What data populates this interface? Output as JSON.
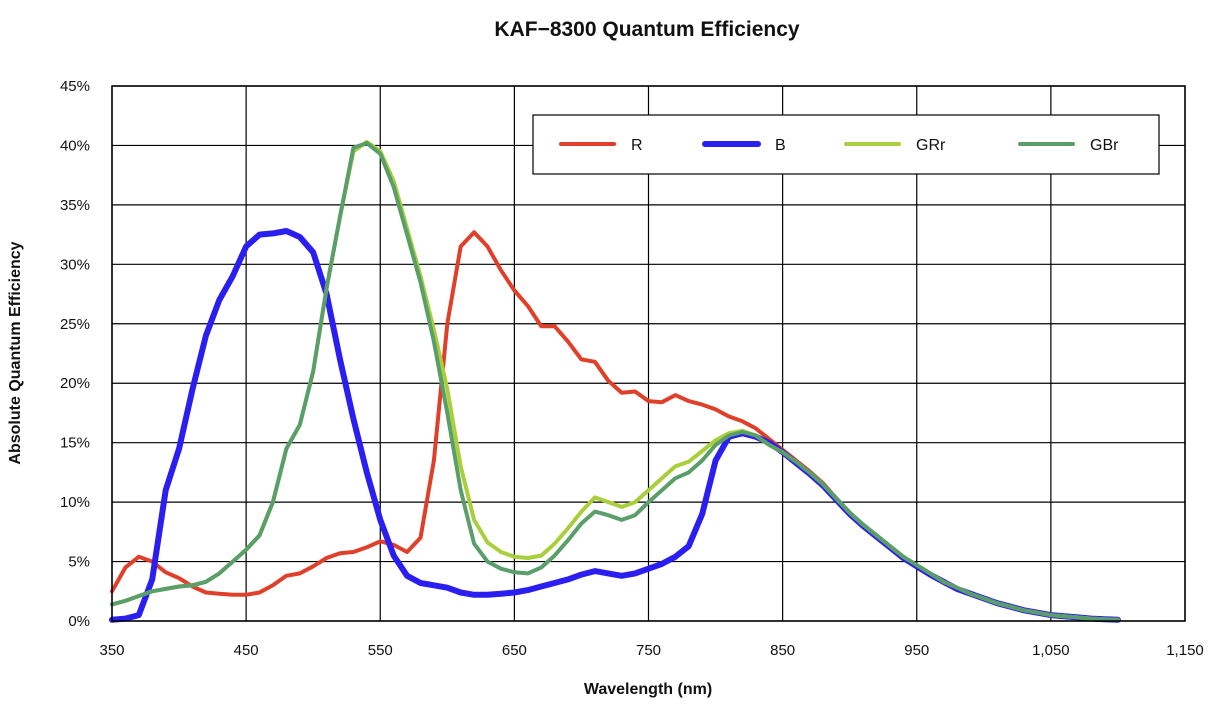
{
  "chart_data": {
    "type": "line",
    "title": "KAF−8300 Quantum Efficiency",
    "xlabel": "Wavelength (nm)",
    "ylabel": "Absolute Quantum Efficiency",
    "xlim": [
      350,
      1150
    ],
    "ylim": [
      0,
      45
    ],
    "x_ticks": [
      350,
      450,
      550,
      650,
      750,
      850,
      950,
      1050,
      1150
    ],
    "x_tick_labels": [
      "350",
      "450",
      "550",
      "650",
      "750",
      "850",
      "950",
      "1,050",
      "1,150"
    ],
    "y_ticks": [
      0,
      5,
      10,
      15,
      20,
      25,
      30,
      35,
      40,
      45
    ],
    "y_tick_labels": [
      "0%",
      "5%",
      "10%",
      "15%",
      "20%",
      "25%",
      "30%",
      "35%",
      "40%",
      "45%"
    ],
    "grid": true,
    "legend_position": "top-right",
    "series": [
      {
        "name": "R",
        "color": "#e0402a",
        "width": 4,
        "points": [
          [
            350,
            2.5
          ],
          [
            360,
            4.5
          ],
          [
            370,
            5.4
          ],
          [
            380,
            5.0
          ],
          [
            390,
            4.1
          ],
          [
            400,
            3.6
          ],
          [
            410,
            2.9
          ],
          [
            420,
            2.4
          ],
          [
            430,
            2.3
          ],
          [
            440,
            2.2
          ],
          [
            450,
            2.2
          ],
          [
            460,
            2.4
          ],
          [
            470,
            3.0
          ],
          [
            480,
            3.8
          ],
          [
            490,
            4.0
          ],
          [
            500,
            4.6
          ],
          [
            510,
            5.3
          ],
          [
            520,
            5.7
          ],
          [
            530,
            5.8
          ],
          [
            540,
            6.2
          ],
          [
            550,
            6.7
          ],
          [
            560,
            6.4
          ],
          [
            570,
            5.8
          ],
          [
            580,
            7.0
          ],
          [
            590,
            13.5
          ],
          [
            600,
            25.0
          ],
          [
            610,
            31.5
          ],
          [
            620,
            32.7
          ],
          [
            630,
            31.5
          ],
          [
            640,
            29.5
          ],
          [
            650,
            27.8
          ],
          [
            660,
            26.5
          ],
          [
            670,
            24.8
          ],
          [
            680,
            24.8
          ],
          [
            690,
            23.5
          ],
          [
            700,
            22.0
          ],
          [
            710,
            21.8
          ],
          [
            720,
            20.2
          ],
          [
            730,
            19.2
          ],
          [
            740,
            19.3
          ],
          [
            750,
            18.5
          ],
          [
            760,
            18.4
          ],
          [
            770,
            19.0
          ],
          [
            780,
            18.5
          ],
          [
            790,
            18.2
          ],
          [
            800,
            17.8
          ],
          [
            810,
            17.2
          ],
          [
            820,
            16.8
          ],
          [
            830,
            16.2
          ],
          [
            840,
            15.3
          ],
          [
            850,
            14.4
          ],
          [
            860,
            13.5
          ],
          [
            870,
            12.6
          ],
          [
            880,
            11.6
          ],
          [
            890,
            10.3
          ],
          [
            900,
            9.0
          ],
          [
            910,
            8.0
          ],
          [
            920,
            7.1
          ],
          [
            930,
            6.2
          ],
          [
            940,
            5.3
          ],
          [
            950,
            4.6
          ],
          [
            960,
            3.9
          ],
          [
            970,
            3.3
          ],
          [
            980,
            2.7
          ],
          [
            990,
            2.3
          ],
          [
            1000,
            1.9
          ],
          [
            1010,
            1.5
          ],
          [
            1020,
            1.2
          ],
          [
            1030,
            0.9
          ],
          [
            1040,
            0.7
          ],
          [
            1050,
            0.5
          ],
          [
            1060,
            0.4
          ],
          [
            1070,
            0.3
          ],
          [
            1080,
            0.2
          ],
          [
            1090,
            0.15
          ],
          [
            1100,
            0.1
          ]
        ]
      },
      {
        "name": "B",
        "color": "#2a1ff0",
        "width": 6,
        "points": [
          [
            350,
            0.1
          ],
          [
            360,
            0.2
          ],
          [
            370,
            0.5
          ],
          [
            380,
            3.5
          ],
          [
            390,
            11.0
          ],
          [
            400,
            14.5
          ],
          [
            410,
            19.5
          ],
          [
            420,
            24.0
          ],
          [
            430,
            27.0
          ],
          [
            440,
            29.0
          ],
          [
            450,
            31.5
          ],
          [
            460,
            32.5
          ],
          [
            470,
            32.6
          ],
          [
            480,
            32.8
          ],
          [
            490,
            32.3
          ],
          [
            500,
            31.0
          ],
          [
            510,
            27.5
          ],
          [
            520,
            22.0
          ],
          [
            530,
            17.0
          ],
          [
            540,
            12.5
          ],
          [
            550,
            8.5
          ],
          [
            560,
            5.5
          ],
          [
            570,
            3.8
          ],
          [
            580,
            3.2
          ],
          [
            590,
            3.0
          ],
          [
            600,
            2.8
          ],
          [
            610,
            2.4
          ],
          [
            620,
            2.2
          ],
          [
            630,
            2.2
          ],
          [
            640,
            2.3
          ],
          [
            650,
            2.4
          ],
          [
            660,
            2.6
          ],
          [
            670,
            2.9
          ],
          [
            680,
            3.2
          ],
          [
            690,
            3.5
          ],
          [
            700,
            3.9
          ],
          [
            710,
            4.2
          ],
          [
            720,
            4.0
          ],
          [
            730,
            3.8
          ],
          [
            740,
            4.0
          ],
          [
            750,
            4.4
          ],
          [
            760,
            4.8
          ],
          [
            770,
            5.4
          ],
          [
            780,
            6.3
          ],
          [
            790,
            9.0
          ],
          [
            800,
            13.5
          ],
          [
            810,
            15.5
          ],
          [
            820,
            15.8
          ],
          [
            830,
            15.5
          ],
          [
            840,
            15.0
          ],
          [
            850,
            14.2
          ],
          [
            860,
            13.3
          ],
          [
            870,
            12.4
          ],
          [
            880,
            11.4
          ],
          [
            890,
            10.2
          ],
          [
            900,
            9.0
          ],
          [
            910,
            8.0
          ],
          [
            920,
            7.1
          ],
          [
            930,
            6.2
          ],
          [
            940,
            5.3
          ],
          [
            950,
            4.6
          ],
          [
            960,
            3.9
          ],
          [
            970,
            3.3
          ],
          [
            980,
            2.7
          ],
          [
            990,
            2.3
          ],
          [
            1000,
            1.9
          ],
          [
            1010,
            1.5
          ],
          [
            1020,
            1.2
          ],
          [
            1030,
            0.9
          ],
          [
            1040,
            0.7
          ],
          [
            1050,
            0.5
          ],
          [
            1060,
            0.4
          ],
          [
            1070,
            0.3
          ],
          [
            1080,
            0.2
          ],
          [
            1090,
            0.15
          ],
          [
            1100,
            0.1
          ]
        ]
      },
      {
        "name": "GRr",
        "color": "#a9cf3c",
        "width": 4,
        "points": [
          [
            350,
            1.4
          ],
          [
            360,
            1.7
          ],
          [
            370,
            2.1
          ],
          [
            380,
            2.5
          ],
          [
            390,
            2.7
          ],
          [
            400,
            2.9
          ],
          [
            410,
            3.0
          ],
          [
            420,
            3.3
          ],
          [
            430,
            4.0
          ],
          [
            440,
            5.0
          ],
          [
            450,
            6.0
          ],
          [
            460,
            7.2
          ],
          [
            470,
            10.0
          ],
          [
            480,
            14.5
          ],
          [
            490,
            16.5
          ],
          [
            500,
            21.0
          ],
          [
            510,
            28.0
          ],
          [
            520,
            34.0
          ],
          [
            530,
            39.5
          ],
          [
            540,
            40.3
          ],
          [
            550,
            39.5
          ],
          [
            560,
            37.0
          ],
          [
            570,
            33.0
          ],
          [
            580,
            29.0
          ],
          [
            590,
            24.5
          ],
          [
            600,
            19.5
          ],
          [
            610,
            13.0
          ],
          [
            620,
            8.5
          ],
          [
            630,
            6.6
          ],
          [
            640,
            5.8
          ],
          [
            650,
            5.4
          ],
          [
            660,
            5.3
          ],
          [
            670,
            5.5
          ],
          [
            680,
            6.5
          ],
          [
            690,
            7.8
          ],
          [
            700,
            9.2
          ],
          [
            710,
            10.4
          ],
          [
            720,
            10.0
          ],
          [
            730,
            9.6
          ],
          [
            740,
            10.0
          ],
          [
            750,
            11.0
          ],
          [
            760,
            12.0
          ],
          [
            770,
            13.0
          ],
          [
            780,
            13.4
          ],
          [
            790,
            14.3
          ],
          [
            800,
            15.2
          ],
          [
            810,
            15.8
          ],
          [
            820,
            16.0
          ],
          [
            830,
            15.6
          ],
          [
            840,
            14.8
          ],
          [
            850,
            14.2
          ],
          [
            860,
            13.4
          ],
          [
            870,
            12.5
          ],
          [
            880,
            11.5
          ],
          [
            890,
            10.3
          ],
          [
            900,
            9.1
          ],
          [
            910,
            8.1
          ],
          [
            920,
            7.2
          ],
          [
            930,
            6.3
          ],
          [
            940,
            5.4
          ],
          [
            950,
            4.7
          ],
          [
            960,
            4.0
          ],
          [
            970,
            3.3
          ],
          [
            980,
            2.8
          ],
          [
            990,
            2.3
          ],
          [
            1000,
            1.9
          ],
          [
            1010,
            1.5
          ],
          [
            1020,
            1.2
          ],
          [
            1030,
            0.9
          ],
          [
            1040,
            0.7
          ],
          [
            1050,
            0.5
          ],
          [
            1060,
            0.4
          ],
          [
            1070,
            0.3
          ],
          [
            1080,
            0.2
          ],
          [
            1090,
            0.15
          ],
          [
            1100,
            0.1
          ]
        ]
      },
      {
        "name": "GBr",
        "color": "#5a9e6a",
        "width": 4,
        "points": [
          [
            350,
            1.4
          ],
          [
            360,
            1.7
          ],
          [
            370,
            2.1
          ],
          [
            380,
            2.5
          ],
          [
            390,
            2.7
          ],
          [
            400,
            2.9
          ],
          [
            410,
            3.0
          ],
          [
            420,
            3.3
          ],
          [
            430,
            4.0
          ],
          [
            440,
            5.0
          ],
          [
            450,
            6.0
          ],
          [
            460,
            7.2
          ],
          [
            470,
            10.0
          ],
          [
            480,
            14.5
          ],
          [
            490,
            16.5
          ],
          [
            500,
            21.0
          ],
          [
            510,
            28.0
          ],
          [
            520,
            34.0
          ],
          [
            530,
            39.8
          ],
          [
            540,
            40.2
          ],
          [
            550,
            39.3
          ],
          [
            560,
            36.5
          ],
          [
            570,
            32.5
          ],
          [
            580,
            28.5
          ],
          [
            590,
            23.5
          ],
          [
            600,
            17.5
          ],
          [
            610,
            11.0
          ],
          [
            620,
            6.5
          ],
          [
            630,
            5.0
          ],
          [
            640,
            4.4
          ],
          [
            650,
            4.1
          ],
          [
            660,
            4.0
          ],
          [
            670,
            4.5
          ],
          [
            680,
            5.5
          ],
          [
            690,
            6.8
          ],
          [
            700,
            8.2
          ],
          [
            710,
            9.2
          ],
          [
            720,
            8.9
          ],
          [
            730,
            8.5
          ],
          [
            740,
            8.9
          ],
          [
            750,
            10.0
          ],
          [
            760,
            11.0
          ],
          [
            770,
            12.0
          ],
          [
            780,
            12.5
          ],
          [
            790,
            13.5
          ],
          [
            800,
            14.8
          ],
          [
            810,
            15.6
          ],
          [
            820,
            15.9
          ],
          [
            830,
            15.6
          ],
          [
            840,
            14.8
          ],
          [
            850,
            14.2
          ],
          [
            860,
            13.4
          ],
          [
            870,
            12.5
          ],
          [
            880,
            11.5
          ],
          [
            890,
            10.3
          ],
          [
            900,
            9.1
          ],
          [
            910,
            8.1
          ],
          [
            920,
            7.2
          ],
          [
            930,
            6.3
          ],
          [
            940,
            5.4
          ],
          [
            950,
            4.7
          ],
          [
            960,
            4.0
          ],
          [
            970,
            3.3
          ],
          [
            980,
            2.8
          ],
          [
            990,
            2.3
          ],
          [
            1000,
            1.9
          ],
          [
            1010,
            1.5
          ],
          [
            1020,
            1.2
          ],
          [
            1030,
            0.9
          ],
          [
            1040,
            0.7
          ],
          [
            1050,
            0.5
          ],
          [
            1060,
            0.4
          ],
          [
            1070,
            0.3
          ],
          [
            1080,
            0.2
          ],
          [
            1090,
            0.15
          ],
          [
            1100,
            0.1
          ]
        ]
      }
    ]
  }
}
